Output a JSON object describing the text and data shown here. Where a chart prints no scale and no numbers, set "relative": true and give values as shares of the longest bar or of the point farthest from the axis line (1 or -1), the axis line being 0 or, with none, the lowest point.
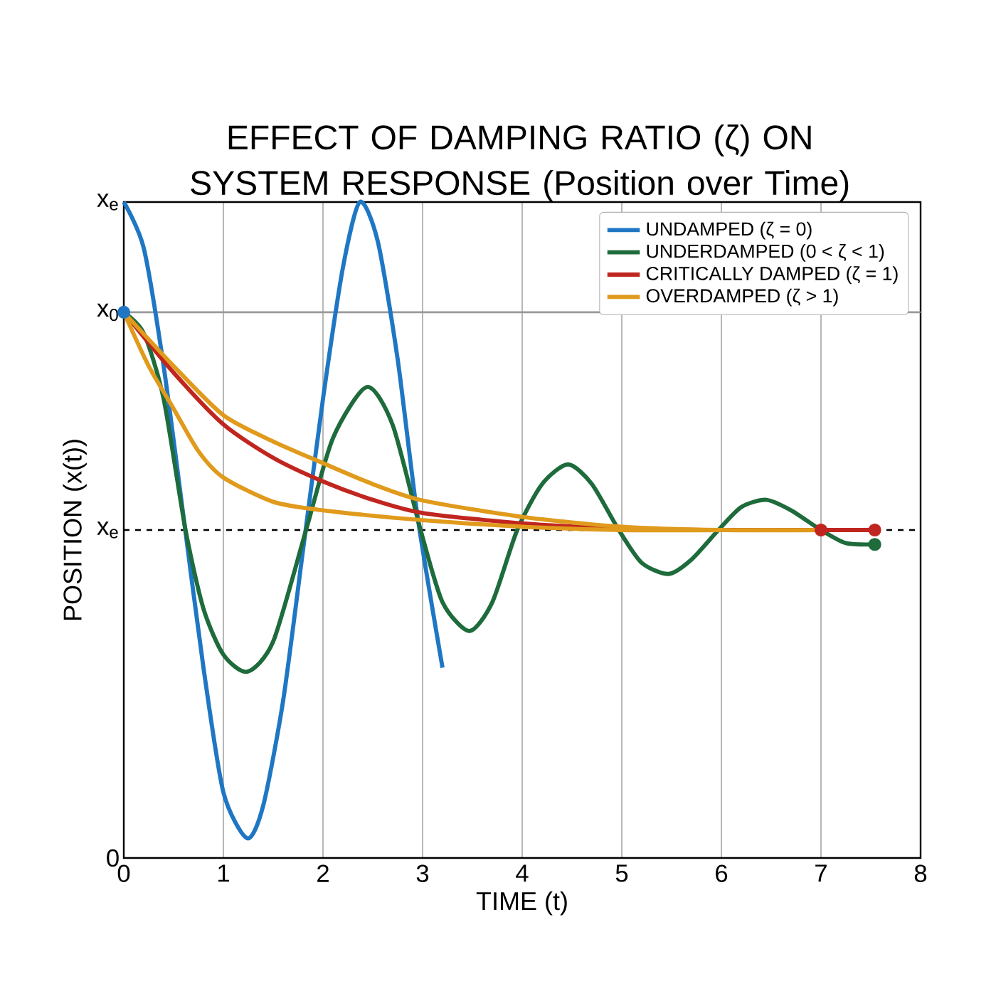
{
  "chart_data": {
    "type": "line",
    "title": "EFFECT OF DAMPING RATIO (ζ) ON SYSTEM RESPONSE (Position over Time)",
    "xlabel": "TIME (t)",
    "ylabel": "POSITION (x(t))",
    "relative": true,
    "xlim": [
      0,
      8
    ],
    "xticks": [
      0,
      1,
      2,
      3,
      4,
      5,
      6,
      7,
      8
    ],
    "grid": "x",
    "annotations": [
      {
        "text": "x$_{e}$",
        "x": 0,
        "y": 1.0
      },
      "0"
    ],
    "legend": "top right",
    "marker": "none",
    "line_style": "solid",
    "series": [
      {
        "name": "UNDAMPED (ζ = 0)",
        "color": "#1f77c4",
        "x": [
          0,
          0.2,
          0.4,
          0.6,
          0.8,
          1.0,
          1.24,
          1.4,
          1.6,
          1.8,
          2.0,
          2.2,
          2.37,
          2.55,
          2.75,
          2.95,
          3.2
        ],
        "values": [
          1.0,
          0.93,
          0.75,
          0.52,
          0.29,
          0.1,
          0.03,
          0.08,
          0.24,
          0.47,
          0.7,
          0.9,
          1.0,
          0.94,
          0.76,
          0.52,
          0.29
        ]
      },
      {
        "name": "UNDERDAMPED (0 < ζ < 1)",
        "color": "#1e6b3c",
        "x": [
          0,
          0.2,
          0.4,
          0.62,
          0.8,
          1.0,
          1.24,
          1.5,
          1.83,
          2.1,
          2.44,
          2.7,
          2.98,
          3.2,
          3.47,
          3.7,
          3.95,
          4.2,
          4.46,
          4.7,
          4.97,
          5.2,
          5.47,
          5.7,
          5.97,
          6.2,
          6.45,
          6.7,
          7.0,
          7.25,
          7.54
        ],
        "values": [
          0.832,
          0.8,
          0.7,
          0.5,
          0.38,
          0.31,
          0.284,
          0.33,
          0.5,
          0.64,
          0.718,
          0.66,
          0.5,
          0.39,
          0.346,
          0.39,
          0.5,
          0.57,
          0.6,
          0.57,
          0.5,
          0.45,
          0.433,
          0.455,
          0.5,
          0.535,
          0.546,
          0.53,
          0.5,
          0.48,
          0.478
        ]
      },
      {
        "name": "CRITICALLY DAMPED (ζ = 1)",
        "color": "#c0261f",
        "x": [
          0,
          0.5,
          1,
          1.5,
          2,
          2.5,
          3,
          4,
          5,
          6,
          7,
          7.54
        ],
        "values": [
          0.832,
          0.74,
          0.661,
          0.61,
          0.574,
          0.546,
          0.526,
          0.51,
          0.502,
          0.5,
          0.5,
          0.5
        ]
      },
      {
        "name": "OVERDAMPED (ζ > 1)",
        "color": "#e09a1c",
        "x": [
          0,
          0.5,
          1,
          1.5,
          2,
          2.5,
          3,
          4,
          5,
          6,
          7
        ],
        "values": [
          0.832,
          0.75,
          0.675,
          0.635,
          0.602,
          0.57,
          0.545,
          0.52,
          0.505,
          0.5,
          0.5
        ]
      },
      {
        "color": "#e09a1c",
        "x": [
          0,
          0.25,
          0.5,
          0.75,
          1,
          1.5,
          2,
          3,
          4,
          5,
          6
        ],
        "values": [
          0.832,
          0.75,
          0.685,
          0.62,
          0.58,
          0.543,
          0.53,
          0.515,
          0.505,
          0.5,
          0.5
        ]
      },
      {
        "type": "scatter",
        "marker": "circle",
        "x": [
          0,
          7,
          7.54,
          7.54
        ],
        "values": [
          0.832,
          0.5,
          0.5,
          0.478
        ],
        "colors": [
          "#1f77c4",
          "#c0261f",
          "#c0261f",
          "#1e6b3c"
        ]
      }
    ],
    "ref_lines": [
      {
        "axis": "y",
        "value": 0.5,
        "label": "x$_{e}$",
        "color": "#000000",
        "line_style": "dashed"
      },
      {
        "axis": "y",
        "value": 0.832,
        "label": "x$_{0}$",
        "color": "#999999",
        "line_style": "solid"
      }
    ]
  }
}
